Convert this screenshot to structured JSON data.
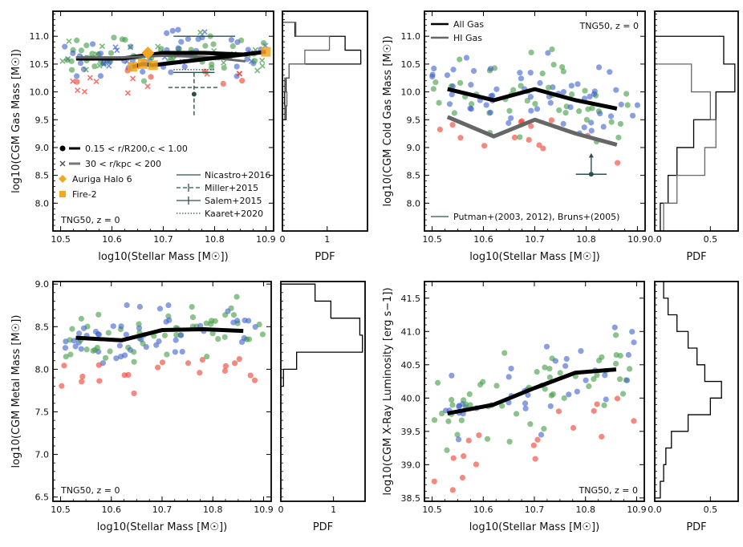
{
  "panels": [
    {
      "id": "gas",
      "ylabel": "log10(CGM Gas Mass [M☉])",
      "xlabel": "log10(Stellar Mass [M☉])",
      "xlim": [
        10.485,
        10.915
      ],
      "ylim": [
        7.5,
        11.45
      ],
      "xticks": [
        10.5,
        10.6,
        10.7,
        10.8,
        10.9
      ],
      "xtick_labels": [
        "10.5",
        "10.6",
        "10.7",
        "10.8",
        "10.9"
      ],
      "yticks": [
        8.0,
        8.5,
        9.0,
        9.5,
        10.0,
        10.5,
        11.0
      ],
      "ytick_labels": [
        "8.0",
        "8.5",
        "9.0",
        "9.5",
        "10.0",
        "10.5",
        "11.0"
      ],
      "annotation": "TNG50, z = 0",
      "pdf_xlabel": "PDF",
      "pdf_xlim": [
        0,
        1.9
      ],
      "pdf_xticks": [
        0,
        1
      ],
      "pdf_xtick_labels": [
        "0",
        "1"
      ]
    },
    {
      "id": "cold",
      "ylabel": "log10(CGM Cold Gas Mass [M☉])",
      "xlabel": "log10(Stellar Mass [M☉])",
      "xlim": [
        10.485,
        10.915
      ],
      "ylim": [
        7.5,
        11.45
      ],
      "xticks": [
        10.5,
        10.6,
        10.7,
        10.8,
        10.9
      ],
      "xtick_labels": [
        "10.5",
        "10.6",
        "10.7",
        "10.8",
        "10.9"
      ],
      "yticks": [
        8.0,
        8.5,
        9.0,
        9.5,
        10.0,
        10.5,
        11.0
      ],
      "ytick_labels": [
        "8.0",
        "8.5",
        "9.0",
        "9.5",
        "10.0",
        "10.5",
        "11.0"
      ],
      "annotation": "TNG50, z = 0",
      "pdf_xlabel": "PDF",
      "pdf_xlim": [
        0,
        0.75
      ],
      "pdf_xticks": [
        0,
        0.5
      ],
      "pdf_xtick_labels": [
        "0.0",
        "0.5"
      ]
    },
    {
      "id": "metal",
      "ylabel": "log10(CGM Metal Mass [M☉])",
      "xlabel": "log10(Stellar Mass [M☉])",
      "xlim": [
        10.485,
        10.915
      ],
      "ylim": [
        6.45,
        9.03
      ],
      "xticks": [
        10.5,
        10.6,
        10.7,
        10.8,
        10.9
      ],
      "xtick_labels": [
        "10.5",
        "10.6",
        "10.7",
        "10.8",
        "10.9"
      ],
      "yticks": [
        6.5,
        7.0,
        7.5,
        8.0,
        8.5,
        9.0
      ],
      "ytick_labels": [
        "6.5",
        "7.0",
        "7.5",
        "8.0",
        "8.5",
        "9.0"
      ],
      "annotation": "TNG50, z = 0",
      "pdf_xlabel": "PDF",
      "pdf_xlim": [
        0,
        1.6
      ],
      "pdf_xticks": [
        0,
        1
      ],
      "pdf_xtick_labels": [
        "0",
        "1"
      ]
    },
    {
      "id": "xray",
      "ylabel": "log10(CGM X-Ray Luminosity [erg s−1])",
      "xlabel": "log10(Stellar Mass [M☉])",
      "xlim": [
        10.485,
        10.915
      ],
      "ylim": [
        38.45,
        41.75
      ],
      "xticks": [
        10.5,
        10.6,
        10.7,
        10.8,
        10.9
      ],
      "xtick_labels": [
        "10.5",
        "10.6",
        "10.7",
        "10.8",
        "10.9"
      ],
      "yticks": [
        38.5,
        39.0,
        39.5,
        40.0,
        40.5,
        41.0,
        41.5
      ],
      "ytick_labels": [
        "38.5",
        "39.0",
        "39.5",
        "40.0",
        "40.5",
        "41.0",
        "41.5"
      ],
      "annotation": "TNG50, z = 0",
      "pdf_xlabel": "PDF",
      "pdf_xlim": [
        0,
        0.75
      ],
      "pdf_xticks": [
        0,
        0.5
      ],
      "pdf_xtick_labels": [
        "0.0",
        "0.5"
      ]
    }
  ],
  "legends": {
    "gas_left": [
      {
        "marker": "circle",
        "text": "0.15 < r/R200,c < 1.00"
      },
      {
        "marker": "cross",
        "text": "30 < r/kpc < 200"
      },
      {
        "marker": "diamond",
        "text": "Auriga Halo 6"
      },
      {
        "marker": "square",
        "text": "Fire-2"
      }
    ],
    "gas_right": [
      {
        "text": "Nicastro+2016"
      },
      {
        "text": "Miller+2015"
      },
      {
        "text": "Salem+2015"
      },
      {
        "text": "Kaaret+2020"
      }
    ],
    "cold_top": [
      {
        "text": "All Gas"
      },
      {
        "text": "HI Gas"
      }
    ],
    "cold_bottom": "Putman+(2003, 2012), Bruns+(2005)"
  },
  "colors": {
    "blue": "#3a5fcd",
    "green": "#3f9a3f",
    "red": "#ef3b2c",
    "orange": "#f5a623",
    "obs": "#2f4f4f",
    "median": "#000000",
    "hi_median": "#666666"
  },
  "chart_data": [
    {
      "type": "scatter",
      "panel": "gas",
      "title": "",
      "xlabel": "log10(Stellar Mass [M☉])",
      "ylabel": "log10(CGM Gas Mass [M☉])",
      "series": [
        {
          "name": "median 0.15 < r/R200,c < 1.00",
          "x": [
            10.53,
            10.62,
            10.7,
            10.78,
            10.86
          ],
          "y": [
            10.6,
            10.6,
            10.7,
            10.7,
            10.67
          ]
        },
        {
          "name": "median 30 < r/kpc < 200",
          "x": [
            10.53,
            10.62,
            10.7,
            10.78,
            10.86
          ],
          "y": [
            10.62,
            10.62,
            10.65,
            10.63,
            10.55
          ]
        },
        {
          "name": "Auriga Halo 6",
          "x": [
            10.67
          ],
          "y": [
            10.7
          ]
        },
        {
          "name": "Fire-2",
          "x": [
            10.64,
            10.66,
            10.68,
            10.9
          ],
          "y": [
            10.45,
            10.5,
            10.48,
            10.72
          ]
        }
      ],
      "observations": [
        {
          "name": "Nicastro+2016",
          "x": [
            10.72,
            10.84
          ],
          "y": [
            11.0,
            11.0
          ]
        },
        {
          "name": "Miller+2015",
          "x": 10.76,
          "y": 10.08,
          "xerr": 0.05,
          "yerr": [
            0.5,
            0.3
          ]
        },
        {
          "name": "Salem+2015",
          "x": 10.76,
          "y": 10.35,
          "xerr": 0.04
        },
        {
          "name": "Kaaret+2020",
          "x": 10.76,
          "y": 10.4
        }
      ],
      "pdf_bins": [
        8.25,
        8.5,
        8.75,
        9.0,
        9.25,
        9.5,
        9.75,
        10.0,
        10.25,
        10.5,
        10.75,
        11.0,
        11.25
      ],
      "pdf_all": [
        0,
        0,
        0,
        0,
        0,
        0.08,
        0.05,
        0.08,
        0.15,
        1.75,
        1.4,
        0.28,
        0.0
      ],
      "pdf_inner": [
        0,
        0,
        0,
        0,
        0,
        0.05,
        0.1,
        0.05,
        0.15,
        0.5,
        1.05,
        0.3,
        0.1
      ]
    },
    {
      "type": "scatter",
      "panel": "cold",
      "title": "",
      "xlabel": "log10(Stellar Mass [M☉])",
      "ylabel": "log10(CGM Cold Gas Mass [M☉])",
      "series": [
        {
          "name": "All Gas median",
          "x": [
            10.53,
            10.62,
            10.7,
            10.78,
            10.86
          ],
          "y": [
            10.05,
            9.85,
            10.05,
            9.85,
            9.7
          ]
        },
        {
          "name": "HI Gas median",
          "x": [
            10.53,
            10.62,
            10.7,
            10.78,
            10.86
          ],
          "y": [
            9.55,
            9.2,
            9.5,
            9.25,
            9.05
          ]
        }
      ],
      "observations": [
        {
          "name": "Putman+(2003, 2012), Bruns+(2005)",
          "x": 10.81,
          "y": 8.52,
          "xerr": 0.03,
          "lower_limit": true
        }
      ],
      "pdf_bins": [
        7.5,
        8.0,
        8.5,
        9.0,
        9.5,
        10.0,
        10.5,
        11.0
      ],
      "pdf_all": [
        0.05,
        0.12,
        0.2,
        0.35,
        0.55,
        0.72,
        0.62,
        0.0
      ],
      "pdf_hi": [
        0.08,
        0.2,
        0.45,
        0.55,
        0.5,
        0.33,
        0.0,
        0.0
      ]
    },
    {
      "type": "scatter",
      "panel": "metal",
      "title": "",
      "xlabel": "log10(Stellar Mass [M☉])",
      "ylabel": "log10(CGM Metal Mass [M☉])",
      "series": [
        {
          "name": "median",
          "x": [
            10.53,
            10.62,
            10.7,
            10.78,
            10.86
          ],
          "y": [
            8.37,
            8.34,
            8.46,
            8.47,
            8.45
          ]
        }
      ],
      "pdf_bins": [
        7.8,
        8.0,
        8.2,
        8.4,
        8.6,
        8.8,
        9.0
      ],
      "pdf_all": [
        0.05,
        0.3,
        1.55,
        1.5,
        0.95,
        0.65,
        0.05
      ]
    },
    {
      "type": "scatter",
      "panel": "xray",
      "title": "",
      "xlabel": "log10(Stellar Mass [M☉])",
      "ylabel": "log10(CGM X-Ray Luminosity [erg s−1])",
      "series": [
        {
          "name": "median",
          "x": [
            10.53,
            10.62,
            10.7,
            10.78,
            10.86
          ],
          "y": [
            39.77,
            39.9,
            40.15,
            40.38,
            40.43
          ]
        }
      ],
      "pdf_bins": [
        38.5,
        38.75,
        39.0,
        39.25,
        39.5,
        39.75,
        40.0,
        40.25,
        40.5,
        40.75,
        41.0,
        41.25,
        41.5,
        41.75
      ],
      "pdf_all": [
        0.05,
        0.08,
        0.1,
        0.15,
        0.3,
        0.5,
        0.6,
        0.45,
        0.38,
        0.3,
        0.2,
        0.12,
        0.08,
        0.05
      ]
    }
  ]
}
